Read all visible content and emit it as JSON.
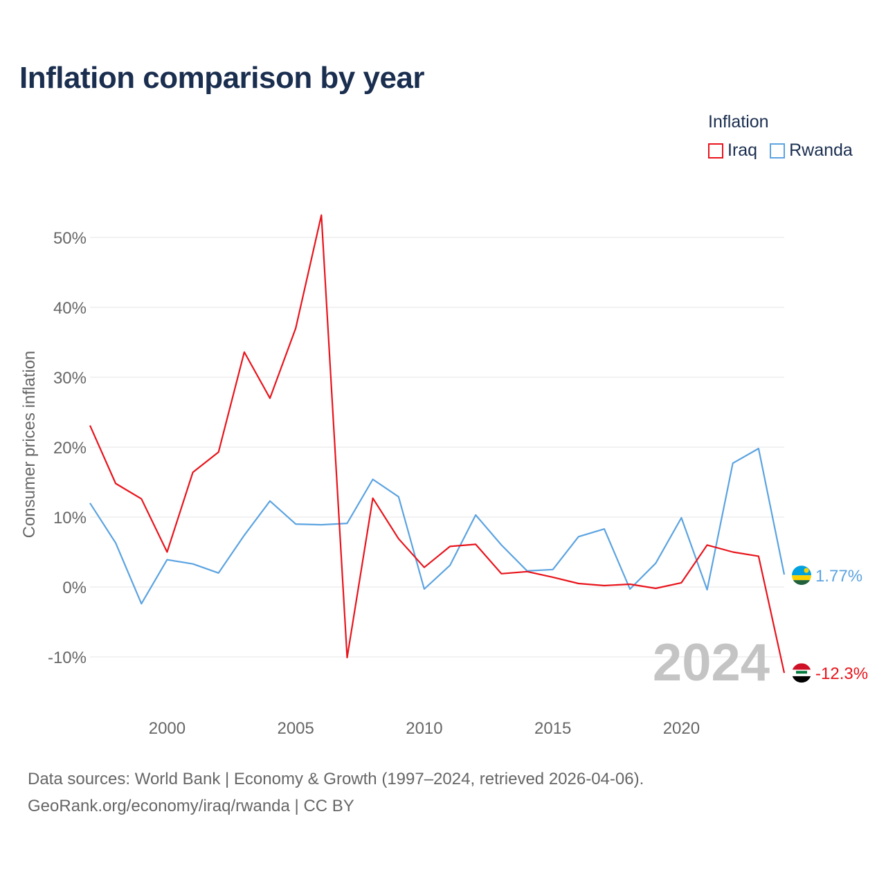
{
  "title": "Inflation comparison by year",
  "legend": {
    "title": "Inflation",
    "items": [
      {
        "name": "Iraq",
        "color": "#e8131b"
      },
      {
        "name": "Rwanda",
        "color": "#5ba3e0"
      }
    ]
  },
  "chart_data": {
    "type": "line",
    "title": "Inflation comparison by year",
    "xlabel": "",
    "ylabel": "Consumer prices inflation",
    "xlim": [
      1997,
      2024
    ],
    "ylim": [
      -16,
      56
    ],
    "y_ticks": [
      -10,
      0,
      10,
      20,
      30,
      40,
      50
    ],
    "y_tick_labels": [
      "-10%",
      "0%",
      "10%",
      "20%",
      "30%",
      "40%",
      "50%"
    ],
    "x_ticks": [
      2000,
      2005,
      2010,
      2015,
      2020
    ],
    "x_tick_labels": [
      "2000",
      "2005",
      "2010",
      "2015",
      "2020"
    ],
    "grid": true,
    "x": [
      1997,
      1998,
      1999,
      2000,
      2001,
      2002,
      2003,
      2004,
      2005,
      2006,
      2007,
      2008,
      2009,
      2010,
      2011,
      2012,
      2013,
      2014,
      2015,
      2016,
      2017,
      2018,
      2019,
      2020,
      2021,
      2022,
      2023,
      2024
    ],
    "series": [
      {
        "name": "Iraq",
        "color": "#e8131b",
        "values": [
          23.1,
          14.8,
          12.6,
          5.0,
          16.4,
          19.3,
          33.6,
          27.0,
          37.0,
          53.2,
          -10.1,
          12.7,
          6.9,
          2.8,
          5.8,
          6.1,
          1.9,
          2.2,
          1.4,
          0.5,
          0.2,
          0.4,
          -0.2,
          0.6,
          6.0,
          5.0,
          4.4,
          -12.3
        ],
        "end_label": "-12.3%",
        "flag": "iraq-flag"
      },
      {
        "name": "Rwanda",
        "color": "#5ba3e0",
        "values": [
          12.0,
          6.3,
          -2.4,
          3.9,
          3.3,
          2.0,
          7.4,
          12.3,
          9.0,
          8.9,
          9.1,
          15.4,
          12.9,
          -0.3,
          3.1,
          10.3,
          6.0,
          2.3,
          2.5,
          7.2,
          8.3,
          -0.3,
          3.4,
          9.9,
          -0.4,
          17.7,
          19.8,
          1.77
        ],
        "end_label": "1.77%",
        "flag": "rwanda-flag"
      }
    ],
    "annotations": [
      "2024"
    ]
  },
  "year_watermark": "2024",
  "footer": {
    "line1": "Data sources: World Bank | Economy & Growth (1997–2024, retrieved 2026-04-06).",
    "line2": "GeoRank.org/economy/iraq/rwanda | CC BY"
  }
}
